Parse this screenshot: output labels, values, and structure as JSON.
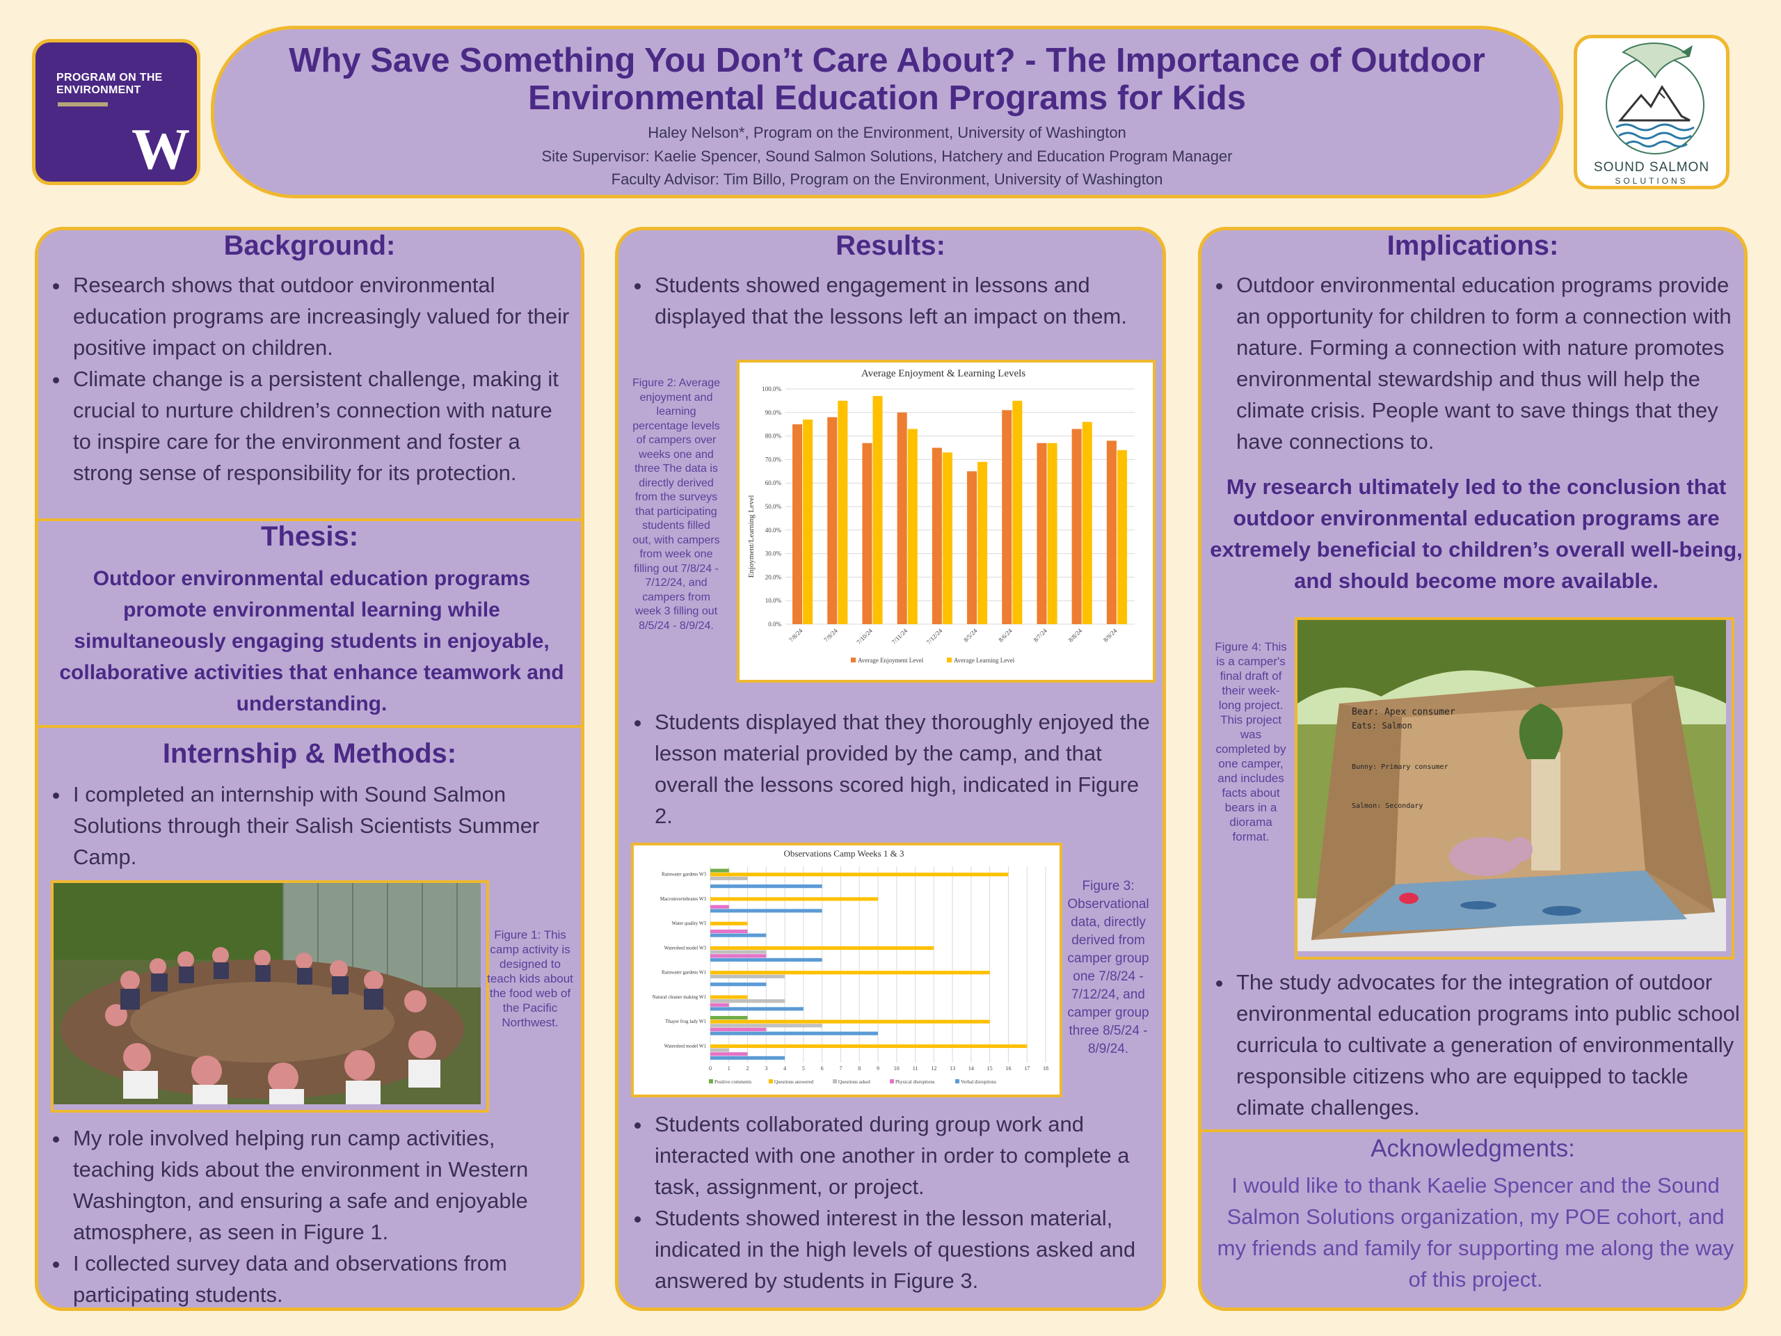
{
  "header": {
    "uw_logo_text": "PROGRAM ON THE ENVIRONMENT",
    "uw_logo_w": "W",
    "title": "Why Save Something You Don’t Care About? - The Importance of Outdoor Environmental Education Programs for Kids",
    "authors": [
      "Haley Nelson*, Program on the Environment, University of Washington",
      "Site Supervisor: Kaelie Spencer, Sound Salmon Solutions, Hatchery and Education Program Manager",
      "Faculty Advisor: Tim Billo, Program on the Environment, University of Washington"
    ],
    "ss_logo_name": "SOUND SALMON",
    "ss_logo_sub": "SOLUTIONS"
  },
  "background": {
    "heading": "Background:",
    "bullets": [
      "Research shows that outdoor environmental education programs are increasingly valued for their positive impact on children.",
      "Climate change is a persistent challenge, making it crucial to nurture children’s connection with nature to inspire care for the environment and foster a strong sense of responsibility for its protection."
    ]
  },
  "thesis": {
    "heading": "Thesis:",
    "text": "Outdoor environmental education programs promote environmental learning while simultaneously engaging students in enjoyable, collaborative activities that enhance teamwork and understanding."
  },
  "methods": {
    "heading": "Internship & Methods:",
    "bullet1": "I completed an internship with Sound Salmon Solutions through their Salish Scientists Summer Camp.",
    "figure1_caption": "Figure 1: This camp activity is designed to teach kids about the food web of the Pacific Northwest.",
    "bullets2": [
      "My role involved helping run camp activities, teaching kids about the environment in Western Washington, and ensuring a safe and enjoyable atmosphere, as seen in Figure 1.",
      "I collected survey data and observations from participating students."
    ]
  },
  "results": {
    "heading": "Results:",
    "bullet1": "Students showed engagement in lessons and displayed that the lessons left an impact on them.",
    "figure2_caption": "Figure 2: Average enjoyment and learning percentage levels of campers over weeks one and three The data is directly derived from the surveys that participating students filled out, with campers from week one filling out 7/8/24 - 7/12/24, and campers from week 3 filling out 8/5/24 - 8/9/24.",
    "bullet2": "Students displayed that they thoroughly enjoyed the lesson material provided by the camp, and that overall the lessons scored high, indicated in Figure 2.",
    "figure3_caption": "Figure 3: Observational data, directly derived from camper group one 7/8/24 - 7/12/24, and camper group three 8/5/24 - 8/9/24.",
    "bullets3": [
      "Students collaborated during group work and interacted with one another in order to complete a task, assignment, or project.",
      "Students showed interest in the lesson material, indicated in the high levels of questions asked and answered by students in Figure 3."
    ]
  },
  "implications": {
    "heading": "Implications:",
    "bullet1": "Outdoor environmental education programs provide an opportunity for children to form a connection with nature. Forming a connection with nature promotes environmental stewardship and thus will help the climate crisis. People want to save things that they have connections to.",
    "conclusion": "My research ultimately led to the conclusion that outdoor environmental education programs are extremely beneficial to children’s overall well-being, and should become more available.",
    "figure4_caption": "Figure 4: This is a camper's final draft of their week-long project. This project was completed by one camper, and includes facts about bears in a diorama format.",
    "bullet2": "The study advocates for the integration of outdoor environmental education programs into public school curricula to cultivate a generation of environmentally responsible citizens who are equipped to tackle climate challenges."
  },
  "acknowledgments": {
    "heading": "Acknowledgments:",
    "text": "I would like to thank Kaelie Spencer and the Sound Salmon Solutions organization, my POE cohort, and my friends and family for supporting me along the way of this project."
  },
  "diorama_labels": {
    "l1": "Bear: Apex consumer",
    "l2": "Eats: Salmon",
    "l3": "Bunny: Primary consumer",
    "l4": "Salmon: Secondary"
  },
  "chart_data": [
    {
      "type": "bar",
      "title": "Average Enjoyment & Learning Levels",
      "ylabel": "Enjoyment/Learning Level",
      "xlabel": "",
      "categories": [
        "7/8/24",
        "7/9/24",
        "7/10/24",
        "7/11/24",
        "7/12/24",
        "8/5/24",
        "8/6/24",
        "8/7/24",
        "8/8/24",
        "8/9/24"
      ],
      "series": [
        {
          "name": "Average Enjoyment Level",
          "color": "#ed7d31",
          "values": [
            85,
            88,
            77,
            90,
            75,
            65,
            91,
            77,
            83,
            78
          ]
        },
        {
          "name": "Average Learning Level",
          "color": "#ffc000",
          "values": [
            87,
            95,
            97,
            83,
            73,
            69,
            95,
            77,
            86,
            74
          ]
        }
      ],
      "ylim": [
        0,
        100
      ],
      "yticks": [
        "0.0%",
        "10.0%",
        "20.0%",
        "30.0%",
        "40.0%",
        "50.0%",
        "60.0%",
        "70.0%",
        "80.0%",
        "90.0%",
        "100.0%"
      ],
      "grid": true,
      "legend": "bottom"
    },
    {
      "type": "bar",
      "orientation": "horizontal",
      "title": "Observations Camp Weeks 1 & 3",
      "categories": [
        "Rainwater gardens W3",
        "Macroinvertebrates W3",
        "Water quality W3",
        "Watershed model W3",
        "Rainwater gardens W1",
        "Natural cleaner making W1",
        "Thayer frog lady W1",
        "Watershed model W1"
      ],
      "series": [
        {
          "name": "Positive comments",
          "color": "#70ad47",
          "values": [
            1,
            0,
            0,
            0,
            0,
            0,
            2,
            0
          ]
        },
        {
          "name": "Questions answered",
          "color": "#ffc000",
          "values": [
            16,
            9,
            2,
            12,
            15,
            2,
            15,
            17
          ]
        },
        {
          "name": "Questions asked",
          "color": "#bfbfbf",
          "values": [
            2,
            0,
            0,
            3,
            4,
            4,
            6,
            1
          ]
        },
        {
          "name": "Physical disruptions",
          "color": "#e573c8",
          "values": [
            0,
            1,
            2,
            3,
            0,
            1,
            3,
            2
          ]
        },
        {
          "name": "Verbal disruptions",
          "color": "#5b9bd5",
          "values": [
            6,
            6,
            3,
            6,
            3,
            5,
            9,
            4
          ]
        }
      ],
      "xlim": [
        0,
        18
      ],
      "xticks": [
        "0",
        "1",
        "2",
        "3",
        "4",
        "5",
        "6",
        "7",
        "8",
        "9",
        "10",
        "11",
        "12",
        "13",
        "14",
        "15",
        "16",
        "17",
        "18"
      ],
      "grid": true,
      "legend": "bottom"
    }
  ]
}
